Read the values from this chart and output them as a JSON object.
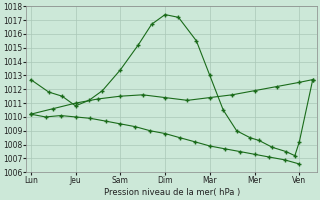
{
  "xlabel": "Pression niveau de la mer( hPa )",
  "bg_color": "#cce8d8",
  "grid_color": "#aac8b8",
  "line_color": "#1a6b1a",
  "ylim": [
    1006,
    1018
  ],
  "yticks": [
    1006,
    1007,
    1008,
    1009,
    1010,
    1011,
    1012,
    1013,
    1014,
    1015,
    1016,
    1017,
    1018
  ],
  "xtick_labels": [
    "Lun",
    "Jeu",
    "Sam",
    "Dim",
    "Mar",
    "Mer",
    "Ven"
  ],
  "xtick_positions": [
    0,
    1,
    2,
    3,
    4,
    5,
    6
  ],
  "xlim": [
    -0.1,
    6.4
  ],
  "lines": [
    {
      "x": [
        0,
        0.33,
        0.67,
        1.0,
        1.33,
        1.67,
        2.0,
        2.33,
        2.67,
        3.0,
        3.33,
        3.67,
        4.0,
        4.33,
        4.67,
        5.0,
        5.33,
        5.67,
        6.0
      ],
      "y": [
        1010.2,
        1010.0,
        1010.1,
        1010.0,
        1009.9,
        1009.7,
        1009.5,
        1009.3,
        1009.0,
        1008.8,
        1008.5,
        1008.2,
        1007.9,
        1007.7,
        1007.5,
        1007.3,
        1007.1,
        1006.9,
        1006.6
      ]
    },
    {
      "x": [
        0,
        0.5,
        1.0,
        1.5,
        2.0,
        2.5,
        3.0,
        3.5,
        4.0,
        4.5,
        5.0,
        5.5,
        6.0,
        6.3
      ],
      "y": [
        1010.2,
        1010.6,
        1011.0,
        1011.3,
        1011.5,
        1011.6,
        1011.4,
        1011.2,
        1011.4,
        1011.6,
        1011.9,
        1012.2,
        1012.5,
        1012.7
      ]
    },
    {
      "x": [
        0,
        0.4,
        0.7,
        1.0,
        1.3,
        1.6,
        2.0,
        2.4,
        2.7,
        3.0,
        3.3,
        3.7,
        4.0,
        4.3,
        4.6,
        4.9,
        5.1,
        5.4,
        5.7,
        5.9,
        6.0,
        6.3
      ],
      "y": [
        1012.7,
        1011.8,
        1011.5,
        1010.8,
        1011.2,
        1011.9,
        1013.4,
        1015.2,
        1016.7,
        1017.4,
        1017.2,
        1015.5,
        1013.0,
        1010.5,
        1009.0,
        1008.5,
        1008.3,
        1007.8,
        1007.5,
        1007.2,
        1008.2,
        1012.7
      ]
    }
  ]
}
